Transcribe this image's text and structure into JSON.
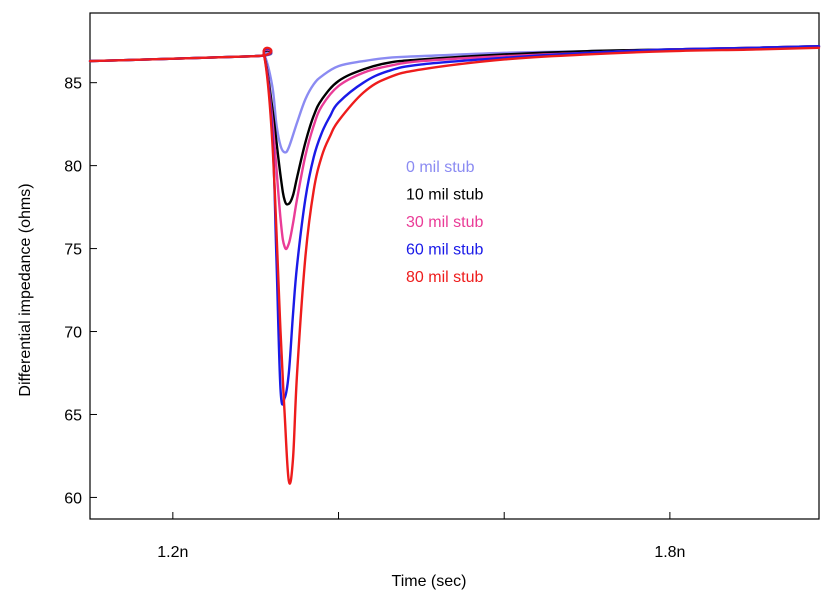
{
  "chart_data": {
    "type": "line",
    "title": "",
    "xlabel": "Time (sec)",
    "ylabel": "Differential impedance (ohms)",
    "xlim": [
      1.1,
      1.98
    ],
    "ylim": [
      58.7,
      89.2
    ],
    "xticks": [
      1.2,
      1.4,
      1.6,
      1.8
    ],
    "xtick_labels": [
      "1.2n",
      "",
      "",
      "1.8n"
    ],
    "yticks": [
      60,
      65,
      70,
      75,
      80,
      85
    ],
    "ytick_labels": [
      "60",
      "65",
      "70",
      "75",
      "80",
      "85"
    ],
    "grid": false,
    "legend_position": "center-inside",
    "series": [
      {
        "name": "0 mil stub",
        "color": "#8b8bf2",
        "x": [
          1.1,
          1.3,
          1.31,
          1.32,
          1.325,
          1.33,
          1.335,
          1.34,
          1.35,
          1.36,
          1.37,
          1.38,
          1.4,
          1.43,
          1.46,
          1.5,
          1.6,
          1.7,
          1.8,
          1.9,
          1.98
        ],
        "values": [
          86.3,
          86.6,
          86.7,
          84.8,
          82.5,
          81.2,
          80.8,
          81.1,
          82.6,
          84.0,
          84.9,
          85.4,
          86.0,
          86.3,
          86.5,
          86.6,
          86.8,
          86.9,
          87.0,
          87.1,
          87.2
        ]
      },
      {
        "name": "10 mil stub",
        "color": "#000000",
        "x": [
          1.1,
          1.3,
          1.31,
          1.32,
          1.33,
          1.335,
          1.34,
          1.345,
          1.35,
          1.36,
          1.37,
          1.38,
          1.4,
          1.43,
          1.46,
          1.5,
          1.6,
          1.7,
          1.8,
          1.9,
          1.98
        ],
        "values": [
          86.3,
          86.6,
          86.7,
          83.5,
          79.4,
          77.9,
          77.7,
          78.2,
          79.3,
          81.4,
          83.0,
          84.0,
          85.1,
          85.8,
          86.2,
          86.4,
          86.7,
          86.9,
          87.0,
          87.1,
          87.2
        ]
      },
      {
        "name": "30 mil stub",
        "color": "#ea3c97",
        "x": [
          1.1,
          1.3,
          1.31,
          1.32,
          1.33,
          1.335,
          1.34,
          1.345,
          1.35,
          1.36,
          1.37,
          1.38,
          1.4,
          1.43,
          1.46,
          1.5,
          1.6,
          1.7,
          1.8,
          1.9,
          1.98
        ],
        "values": [
          86.3,
          86.6,
          86.7,
          82.8,
          76.8,
          75.1,
          75.3,
          76.5,
          78.0,
          80.6,
          82.4,
          83.6,
          84.8,
          85.6,
          86.0,
          86.3,
          86.6,
          86.8,
          87.0,
          87.1,
          87.2
        ]
      },
      {
        "name": "60 mil stub",
        "color": "#1a1ae8",
        "x": [
          1.1,
          1.3,
          1.31,
          1.32,
          1.325,
          1.33,
          1.335,
          1.34,
          1.345,
          1.35,
          1.36,
          1.37,
          1.38,
          1.39,
          1.4,
          1.43,
          1.46,
          1.5,
          1.6,
          1.7,
          1.8,
          1.9,
          1.98
        ],
        "values": [
          86.3,
          86.6,
          86.7,
          82.0,
          74.5,
          66.5,
          66.0,
          67.5,
          71.0,
          74.0,
          78.0,
          80.5,
          82.0,
          83.0,
          83.8,
          85.0,
          85.7,
          86.1,
          86.5,
          86.8,
          87.0,
          87.1,
          87.2
        ]
      },
      {
        "name": "80 mil stub",
        "color": "#ee1c1c",
        "x": [
          1.1,
          1.3,
          1.31,
          1.32,
          1.33,
          1.335,
          1.34,
          1.345,
          1.35,
          1.36,
          1.37,
          1.38,
          1.39,
          1.4,
          1.43,
          1.46,
          1.5,
          1.6,
          1.7,
          1.8,
          1.9,
          1.98
        ],
        "values": [
          86.3,
          86.6,
          86.7,
          81.5,
          70.0,
          65.0,
          61.0,
          62.3,
          67.5,
          74.5,
          78.5,
          80.6,
          81.8,
          82.7,
          84.4,
          85.3,
          85.8,
          86.4,
          86.7,
          86.9,
          87.0,
          87.1
        ]
      }
    ]
  }
}
